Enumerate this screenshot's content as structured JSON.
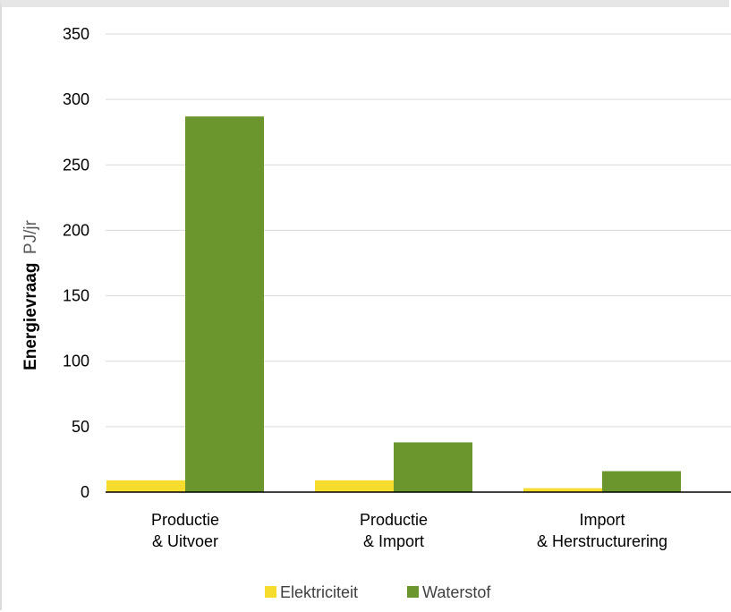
{
  "chart_data": {
    "type": "bar",
    "categories": [
      [
        "Productie",
        "& Uitvoer"
      ],
      [
        "Productie",
        "& Import"
      ],
      [
        "Import",
        "& Herstructurering"
      ]
    ],
    "series": [
      {
        "name": "Elektriciteit",
        "color": "#f5dc2d",
        "values": [
          9,
          9,
          3
        ]
      },
      {
        "name": "Waterstof",
        "color": "#6a962d",
        "values": [
          287,
          38,
          16
        ]
      }
    ],
    "ylabel_main": "Energievraag",
    "ylabel_unit": "PJ/jr",
    "ylim": [
      0,
      350
    ],
    "yticks": [
      0,
      50,
      100,
      150,
      200,
      250,
      300,
      350
    ],
    "grid": true,
    "legend_position": "bottom"
  }
}
